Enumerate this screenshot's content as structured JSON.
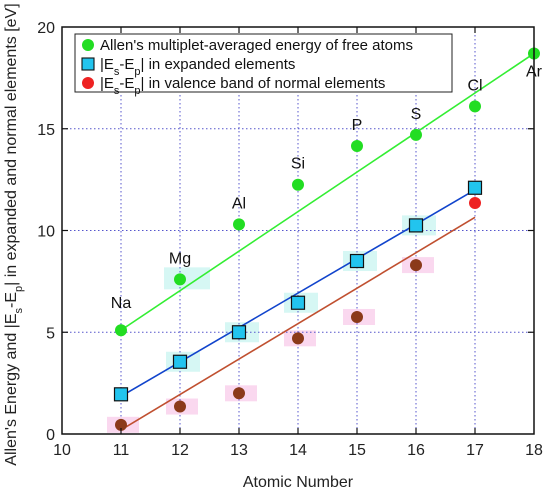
{
  "chart_data": {
    "type": "scatter",
    "xlabel": "Atomic Number",
    "ylabel": "Allen's Energy and |Es-Ep| in expanded and normal elements [eV]",
    "xlim": [
      10,
      18
    ],
    "ylim": [
      0,
      20
    ],
    "x_ticks": [
      "10",
      "11",
      "12",
      "13",
      "14",
      "15",
      "16",
      "17",
      "18"
    ],
    "y_ticks": [
      "0",
      "5",
      "10",
      "15",
      "20"
    ],
    "grid": true,
    "legend_position": "top-left",
    "colors": {
      "green": "#22dd22",
      "green_line": "#33ee33",
      "blue_marker": "#22c4ee",
      "blue_line": "#1144cc",
      "red": "#ee2222",
      "brown": "#8b3a1a",
      "brown_line": "#c05030",
      "grid": "#5555cc",
      "highlight_cyan": "#c8f4f0",
      "highlight_pink": "#f8c8e8"
    },
    "series": [
      {
        "name": "Allen's multiplet-averaged energy of free atoms",
        "marker": "circle",
        "color": "#22dd22",
        "x": [
          11,
          12,
          13,
          14,
          15,
          16,
          17,
          18
        ],
        "y": [
          5.1,
          7.6,
          10.3,
          12.25,
          14.15,
          14.7,
          16.1,
          18.7
        ],
        "labels": [
          "Na",
          "Mg",
          "Al",
          "Si",
          "P",
          "S",
          "Cl",
          "Ar"
        ],
        "fit": {
          "x": [
            11,
            18
          ],
          "y": [
            5.1,
            18.7
          ],
          "color": "#33ee33"
        }
      },
      {
        "name": "|Es-Ep| in expanded elements",
        "marker": "square",
        "color": "#22c4ee",
        "x": [
          11,
          12,
          13,
          14,
          15,
          16,
          17
        ],
        "y": [
          1.95,
          3.55,
          5.0,
          6.45,
          8.5,
          10.25,
          12.1
        ],
        "fit": {
          "x": [
            11,
            17
          ],
          "y": [
            1.85,
            12.0
          ],
          "color": "#1144cc"
        }
      },
      {
        "name": "|Es-Ep| in valence band of normal elements",
        "marker": "circle",
        "color": "#ee2222",
        "x": [
          11,
          12,
          13,
          14,
          15,
          16,
          17
        ],
        "y": [
          0.45,
          1.35,
          2.0,
          4.7,
          5.75,
          8.3,
          11.35
        ],
        "fit": {
          "x": [
            11,
            17
          ],
          "y": [
            0.2,
            10.65
          ],
          "color": "#c05030"
        }
      }
    ],
    "legend": [
      {
        "main": "Allen's multiplet-averaged energy of free atoms",
        "marker": "circle",
        "color": "#22dd22"
      },
      {
        "main": "|E",
        "sub1": "s",
        "mid": "-E",
        "sub2": "p",
        "tail": "| in expanded elements",
        "marker": "square",
        "color": "#22c4ee"
      },
      {
        "main": "|E",
        "sub1": "s",
        "mid": "-E",
        "sub2": "p",
        "tail": "| in valence band of normal elements",
        "marker": "circle",
        "color": "#ee2222"
      }
    ],
    "ylabel_parts": {
      "pre": "Allen's Energy and |E",
      "sub1": "s",
      "mid": "-E",
      "sub2": "p",
      "post": "| in expanded and normal elements [eV]"
    }
  }
}
